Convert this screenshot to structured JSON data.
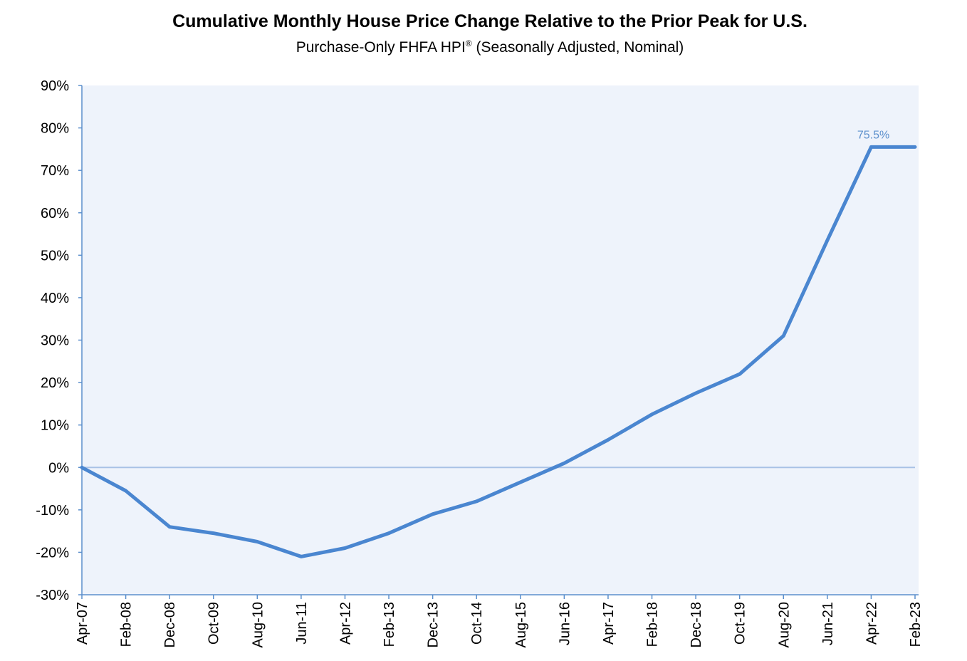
{
  "chart_data": {
    "type": "line",
    "title": "Cumulative Monthly House Price Change Relative to the Prior Peak for U.S.",
    "subtitle_main": "Purchase-Only FHFA HPI",
    "subtitle_mark": "®",
    "subtitle_rest": " (Seasonally Adjusted, Nominal)",
    "xlabel": "",
    "ylabel": "",
    "ylim": [
      -30,
      90
    ],
    "y_ticks": [
      "90%",
      "80%",
      "70%",
      "60%",
      "50%",
      "40%",
      "30%",
      "20%",
      "10%",
      "0%",
      "-10%",
      "-20%",
      "-30%"
    ],
    "x_ticks": [
      "Apr-07",
      "Feb-08",
      "Dec-08",
      "Oct-09",
      "Aug-10",
      "Jun-11",
      "Apr-12",
      "Feb-13",
      "Dec-13",
      "Oct-14",
      "Aug-15",
      "Jun-16",
      "Apr-17",
      "Feb-18",
      "Dec-18",
      "Oct-19",
      "Aug-20",
      "Jun-21",
      "Apr-22",
      "Feb-23"
    ],
    "grid": false,
    "colors": {
      "line": "#4a86d0",
      "plot_background": "#eef3fb",
      "zero_line": "#a9c2e6",
      "axis": "#5b8fcc",
      "annotation": "#5b8fcc"
    },
    "annotation": {
      "text": "75.5%",
      "x": "Jan-23",
      "y": 75.5
    },
    "series": [
      {
        "x": [
          "Apr-07",
          "Feb-08",
          "Dec-08",
          "Oct-09",
          "Aug-10",
          "Jun-11",
          "Apr-12",
          "Feb-13",
          "Dec-13",
          "Oct-14",
          "Aug-15",
          "Jun-16",
          "Apr-17",
          "Feb-18",
          "Dec-18",
          "Oct-19",
          "Aug-20",
          "Jun-21",
          "Apr-22",
          "Feb-23"
        ],
        "values": [
          0,
          -5.5,
          -14,
          -15.5,
          -17.5,
          -21,
          -19,
          -15.5,
          -11,
          -8,
          -3.5,
          1,
          6.5,
          12.5,
          17.5,
          22,
          31,
          53.5,
          75.5,
          75.5
        ]
      }
    ]
  }
}
